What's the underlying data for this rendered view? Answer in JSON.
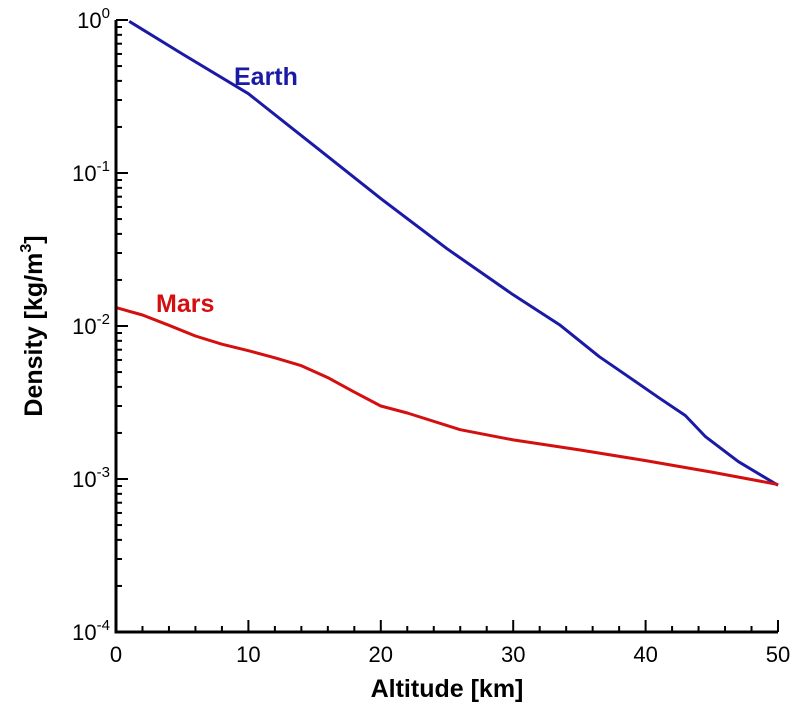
{
  "chart_data": {
    "type": "line",
    "xlabel": "Altitude [km]",
    "ylabel_prefix": "Density [kg/m",
    "ylabel_sup": "3",
    "ylabel_suffix": "]",
    "xlim": [
      0,
      50
    ],
    "ylim": [
      0.0001,
      1
    ],
    "yscale": "log",
    "grid": false,
    "x_ticks": [
      0,
      10,
      20,
      30,
      40,
      50
    ],
    "y_ticks": [
      {
        "value": 1,
        "base": "10",
        "exp": "0"
      },
      {
        "value": 0.1,
        "base": "10",
        "exp": "-1"
      },
      {
        "value": 0.01,
        "base": "10",
        "exp": "-2"
      },
      {
        "value": 0.001,
        "base": "10",
        "exp": "-3"
      },
      {
        "value": 0.0001,
        "base": "10",
        "exp": "-4"
      }
    ],
    "series": [
      {
        "name": "Earth",
        "color": "#1a1aa6",
        "x": [
          1,
          5,
          10,
          15,
          20,
          25,
          30,
          33.5,
          36.5,
          38.5,
          41,
          43,
          44.5,
          47,
          50
        ],
        "y": [
          0.98,
          0.6,
          0.33,
          0.15,
          0.068,
          0.032,
          0.016,
          0.0102,
          0.0063,
          0.0048,
          0.0034,
          0.0026,
          0.0019,
          0.0013,
          0.00091
        ]
      },
      {
        "name": "Mars",
        "color": "#d40f0f",
        "x": [
          0,
          2,
          4,
          6,
          8,
          10,
          12,
          14,
          16,
          18,
          20,
          22,
          26,
          30,
          35,
          40,
          45,
          50
        ],
        "y": [
          0.0132,
          0.0118,
          0.0101,
          0.0086,
          0.0076,
          0.0069,
          0.0062,
          0.0055,
          0.0046,
          0.0037,
          0.003,
          0.0027,
          0.0021,
          0.0018,
          0.00155,
          0.00132,
          0.00111,
          0.00092
        ]
      }
    ]
  }
}
